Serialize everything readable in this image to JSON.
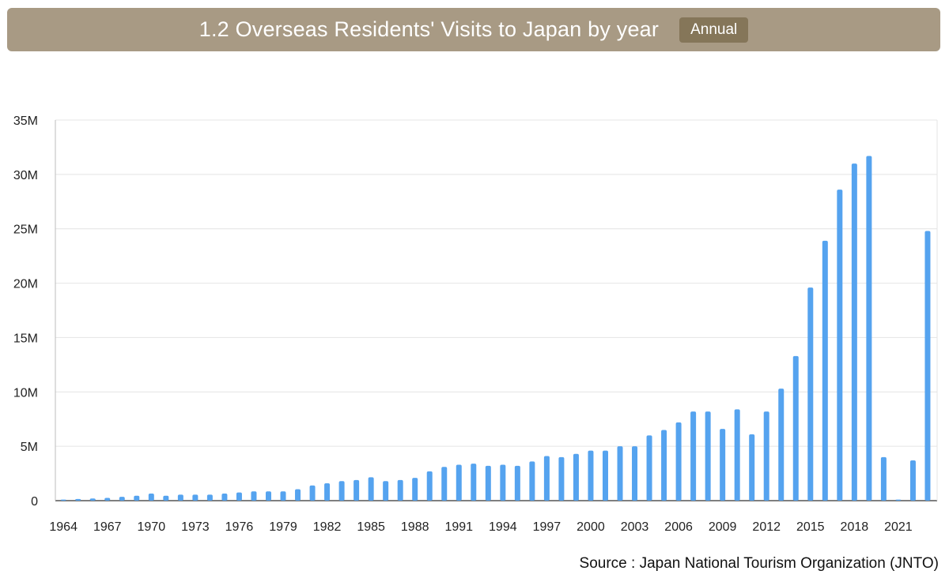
{
  "header": {
    "title": "1.2 Overseas Residents' Visits to Japan by year",
    "badge": "Annual"
  },
  "colors": {
    "header_bg": "#a89a84",
    "badge_bg": "#857659",
    "bar": "#55a3ef",
    "grid": "#e4e4e4",
    "axis": "#bdbdbd"
  },
  "source": "Source : Japan National Tourism Organization (JNTO)",
  "chart_data": {
    "type": "bar",
    "title": "",
    "xlabel": "",
    "ylabel": "",
    "ylim": [
      0,
      35000000
    ],
    "y_ticks": [
      {
        "value": 0,
        "label": "0"
      },
      {
        "value": 5000000,
        "label": "5M"
      },
      {
        "value": 10000000,
        "label": "10M"
      },
      {
        "value": 15000000,
        "label": "15M"
      },
      {
        "value": 20000000,
        "label": "20M"
      },
      {
        "value": 25000000,
        "label": "25M"
      },
      {
        "value": 30000000,
        "label": "30M"
      },
      {
        "value": 35000000,
        "label": "35M"
      }
    ],
    "grid": true,
    "legend": "none",
    "x_tick_labels": [
      "1964",
      "1967",
      "1970",
      "1973",
      "1976",
      "1979",
      "1982",
      "1985",
      "1988",
      "1991",
      "1994",
      "1997",
      "2000",
      "2003",
      "2006",
      "2009",
      "2012",
      "2015",
      "2018",
      "2021"
    ],
    "categories": [
      1964,
      1965,
      1966,
      1967,
      1968,
      1969,
      1970,
      1971,
      1972,
      1973,
      1974,
      1975,
      1976,
      1977,
      1978,
      1979,
      1980,
      1981,
      1982,
      1983,
      1984,
      1985,
      1986,
      1987,
      1988,
      1989,
      1990,
      1991,
      1992,
      1993,
      1994,
      1995,
      1996,
      1997,
      1998,
      1999,
      2000,
      2001,
      2002,
      2003,
      2004,
      2005,
      2006,
      2007,
      2008,
      2009,
      2010,
      2011,
      2012,
      2013,
      2014,
      2015,
      2016,
      2017,
      2018,
      2019,
      2020,
      2021,
      2022,
      2023
    ],
    "values": [
      100000,
      150000,
      200000,
      250000,
      350000,
      450000,
      650000,
      450000,
      550000,
      550000,
      550000,
      650000,
      750000,
      850000,
      850000,
      850000,
      1050000,
      1400000,
      1600000,
      1800000,
      1900000,
      2150000,
      1800000,
      1900000,
      2100000,
      2700000,
      3100000,
      3300000,
      3400000,
      3200000,
      3300000,
      3200000,
      3600000,
      4100000,
      4000000,
      4300000,
      4600000,
      4600000,
      5000000,
      5000000,
      6000000,
      6500000,
      7200000,
      8200000,
      8200000,
      6600000,
      8400000,
      6100000,
      8200000,
      10300000,
      13300000,
      19600000,
      23900000,
      28600000,
      31000000,
      31700000,
      4000000,
      100000,
      3700000,
      24800000
    ]
  }
}
